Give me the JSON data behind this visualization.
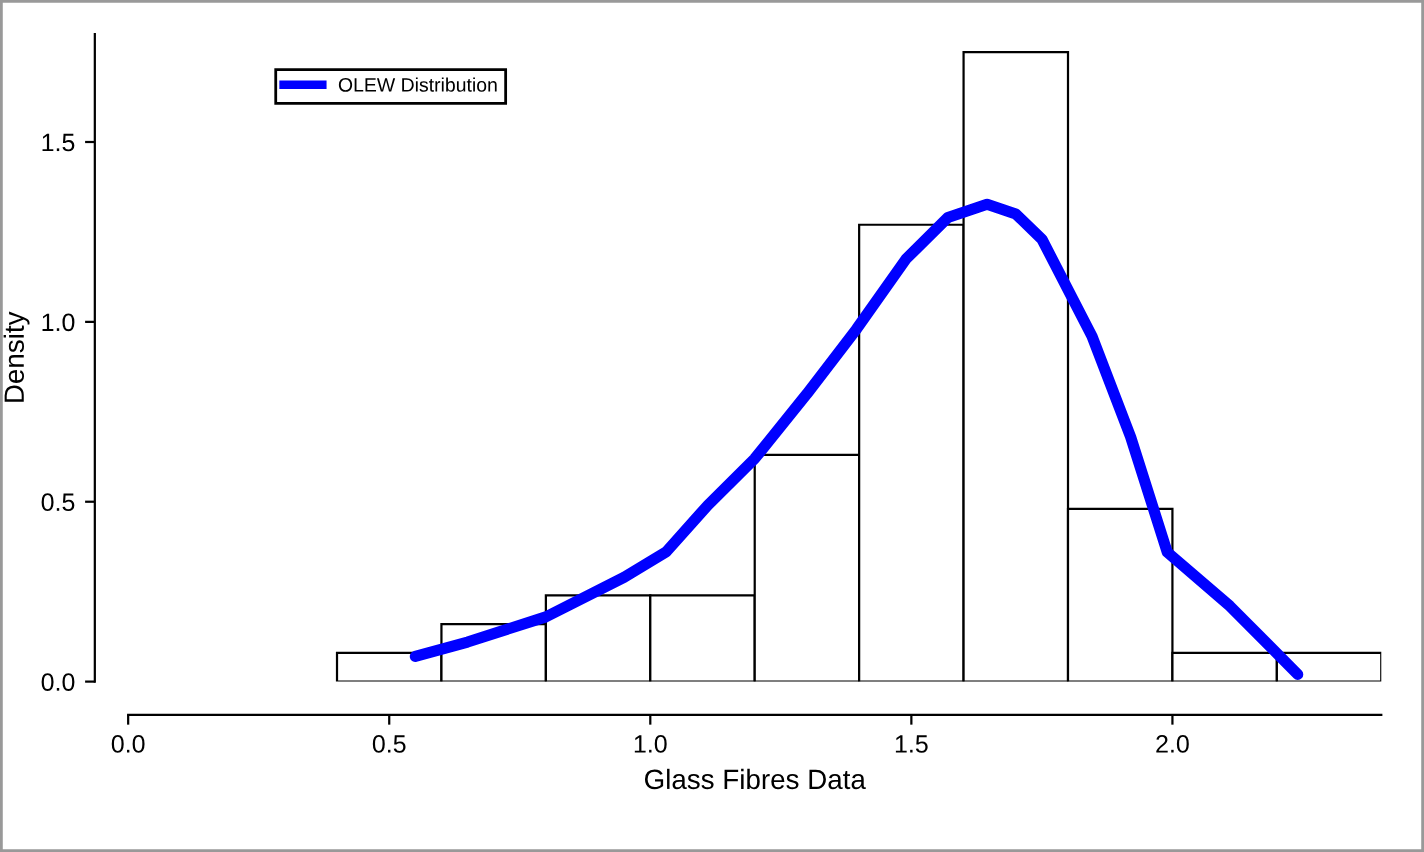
{
  "chart_data": {
    "type": "histogram",
    "xlabel": "Glass Fibres Data",
    "ylabel": "Density",
    "bins": [
      0.4,
      0.6,
      0.8,
      1.0,
      1.2,
      1.4,
      1.6,
      1.8,
      2.0,
      2.2,
      2.4
    ],
    "values": [
      0.08,
      0.16,
      0.24,
      0.24,
      0.63,
      1.27,
      1.75,
      0.48,
      0.08,
      0.08
    ],
    "series": [
      {
        "type": "line",
        "name": "OLEW Distribution",
        "color": "#0000ff",
        "x": [
          0.55,
          0.65,
          0.8,
          0.95,
          1.03,
          1.11,
          1.2,
          1.3,
          1.395,
          1.49,
          1.57,
          1.645,
          1.7,
          1.75,
          1.846,
          1.92,
          1.99,
          2.11,
          2.24
        ],
        "values": [
          0.07,
          0.11,
          0.18,
          0.29,
          0.36,
          0.49,
          0.62,
          0.8,
          0.98,
          1.175,
          1.29,
          1.327,
          1.3,
          1.23,
          0.96,
          0.68,
          0.36,
          0.21,
          0.02
        ]
      }
    ],
    "xlim": [
      0,
      2.4
    ],
    "ylim": [
      0,
      1.8
    ],
    "xticks": [
      {
        "value": 0,
        "label": "0.0"
      },
      0.5,
      {
        "value": 1,
        "label": "1.0"
      },
      1.5,
      {
        "value": 2,
        "label": "2.0"
      }
    ],
    "yticks": [
      {
        "value": 0,
        "label": "0.0"
      },
      0.5,
      {
        "value": 1,
        "label": "1.0"
      },
      1.5
    ],
    "grid": false,
    "legend": "top left"
  }
}
